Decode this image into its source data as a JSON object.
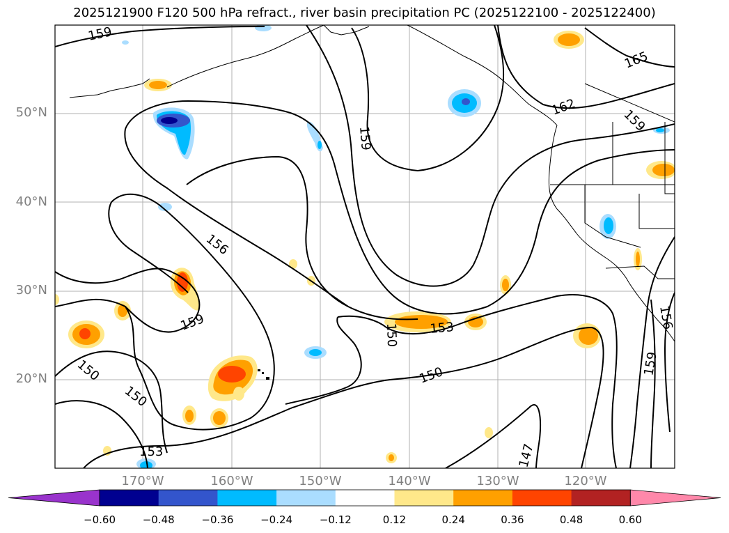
{
  "title": "2025121900 F120 500 hPa refract., river basin precipitation PC (2025122100 - 2025122400)",
  "lat_labels": [
    "50°N",
    "40°N",
    "30°N",
    "20°N"
  ],
  "lon_labels": [
    "170°W",
    "160°W",
    "150°W",
    "140°W",
    "130°W",
    "120°W"
  ],
  "contour_labels": [
    "159",
    "165",
    "162",
    "159",
    "159",
    "156",
    "159",
    "150",
    "150",
    "153",
    "150",
    "150",
    "153",
    "147",
    "159",
    "156"
  ],
  "colorbar": {
    "colors": [
      "#9933cc",
      "#000090",
      "#3355cc",
      "#00bbff",
      "#aaddff",
      "#ffffff",
      "#ffe88a",
      "#ffa000",
      "#ff4400",
      "#b22222",
      "#ff88aa"
    ],
    "ticks": [
      "−0.60",
      "−0.48",
      "−0.36",
      "−0.24",
      "−0.12",
      "0.12",
      "0.24",
      "0.36",
      "0.48",
      "0.60"
    ]
  }
}
